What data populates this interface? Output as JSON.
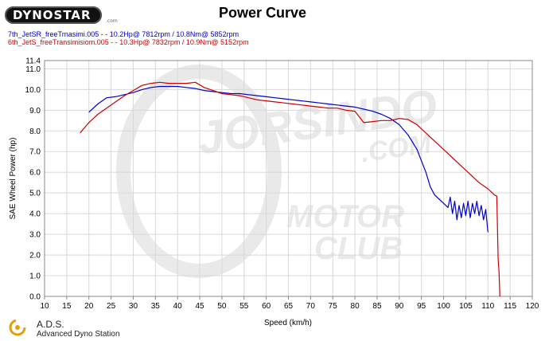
{
  "logo": {
    "text": "DYNOSTAR",
    "sub": ".com"
  },
  "title": "Power Curve",
  "runs": [
    {
      "label": "7th_JetSR_freeTrnasimi.005 -  - 10.2Hp@ 7812rpm / 10.8Nm@ 5852rpm",
      "color": "#0000cc"
    },
    {
      "label": "6th_JetS_freeTransimisiom.005 -  - 10.3Hp@ 7832rpm / 10.9Nm@ 5152rpm",
      "color": "#cc0000"
    }
  ],
  "footer": {
    "name": "A.D.S.",
    "subtitle": "Advanced Dyno Station"
  },
  "watermark": {
    "line1": "JORSINDO",
    "line2": ".COM",
    "line3": "MOTOR",
    "line4": "CLUB"
  },
  "chart_data": {
    "type": "line",
    "title": "Power Curve",
    "xlabel": "Speed (km/h)",
    "ylabel": "SAE Wheel Power (hp)",
    "xlim": [
      10,
      120
    ],
    "ylim": [
      0,
      11.4
    ],
    "xticks": [
      "10",
      "15",
      "20",
      "25",
      "30",
      "35",
      "40",
      "45",
      "50",
      "55",
      "60",
      "65",
      "70",
      "75",
      "80",
      "85",
      "90",
      "95",
      "100",
      "105",
      "110",
      "115",
      "120"
    ],
    "yticks": [
      "0.0",
      "1.0",
      "2.0",
      "3.0",
      "4.0",
      "5.0",
      "6.0",
      "7.0",
      "8.0",
      "9.0",
      "10.0",
      "11.0",
      "11.4"
    ],
    "grid": true,
    "series": [
      {
        "name": "7th_JetSR_freeTrnasimi.005",
        "color": "#0000cc",
        "x": [
          20,
          22,
          24,
          26,
          28,
          30,
          32,
          34,
          36,
          38,
          40,
          42,
          44,
          46,
          48,
          50,
          52,
          54,
          56,
          58,
          60,
          62,
          64,
          66,
          68,
          70,
          72,
          74,
          76,
          78,
          80,
          82,
          84,
          86,
          88,
          90,
          92,
          94,
          96,
          97,
          98,
          99,
          100,
          101,
          101.5,
          102,
          102.5,
          103,
          103.5,
          104,
          104.5,
          105,
          105.5,
          106,
          106.5,
          107,
          107.5,
          108,
          108.5,
          109,
          109.5,
          110
        ],
        "y": [
          8.9,
          9.3,
          9.6,
          9.65,
          9.75,
          9.85,
          10.0,
          10.1,
          10.15,
          10.15,
          10.15,
          10.1,
          10.05,
          9.95,
          9.9,
          9.85,
          9.8,
          9.8,
          9.75,
          9.7,
          9.65,
          9.6,
          9.55,
          9.5,
          9.45,
          9.4,
          9.35,
          9.3,
          9.25,
          9.2,
          9.15,
          9.05,
          8.95,
          8.8,
          8.6,
          8.3,
          7.8,
          7.1,
          6.0,
          5.3,
          4.9,
          4.7,
          4.5,
          4.3,
          4.8,
          4.0,
          4.6,
          3.7,
          4.4,
          3.8,
          4.5,
          3.9,
          4.6,
          3.8,
          4.5,
          4.0,
          4.6,
          3.9,
          4.4,
          3.7,
          4.2,
          3.1
        ]
      },
      {
        "name": "6th_JetS_freeTransimisiom.005",
        "color": "#cc0000",
        "x": [
          18,
          20,
          22,
          24,
          26,
          28,
          30,
          32,
          34,
          36,
          38,
          40,
          42,
          44,
          46,
          48,
          50,
          52,
          54,
          56,
          58,
          60,
          62,
          64,
          66,
          68,
          70,
          72,
          74,
          76,
          78,
          80,
          82,
          84,
          86,
          88,
          90,
          92,
          94,
          96,
          98,
          100,
          102,
          104,
          106,
          108,
          110,
          111,
          111.5,
          112,
          112.3,
          112.5,
          112.7
        ],
        "y": [
          7.9,
          8.4,
          8.8,
          9.1,
          9.4,
          9.7,
          9.95,
          10.2,
          10.3,
          10.35,
          10.3,
          10.3,
          10.3,
          10.35,
          10.1,
          9.95,
          9.8,
          9.75,
          9.7,
          9.6,
          9.5,
          9.45,
          9.4,
          9.35,
          9.3,
          9.25,
          9.2,
          9.15,
          9.1,
          9.1,
          9.0,
          8.95,
          8.4,
          8.45,
          8.5,
          8.5,
          8.6,
          8.55,
          8.3,
          7.9,
          7.5,
          7.1,
          6.7,
          6.3,
          5.9,
          5.5,
          5.2,
          5.0,
          4.9,
          4.85,
          1.8,
          1.2,
          0.0
        ]
      }
    ]
  }
}
